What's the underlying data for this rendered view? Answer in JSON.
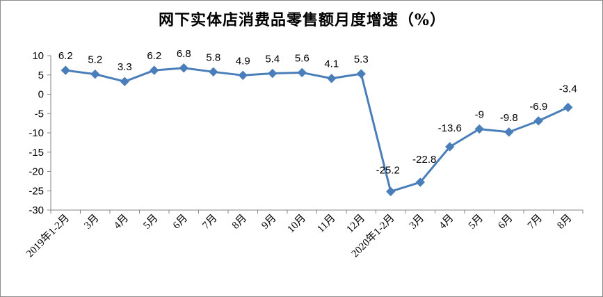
{
  "chart_data": {
    "type": "line",
    "title": "网下实体店消费品零售额月度增速（%）",
    "xlabel": "",
    "ylabel": "",
    "categories": [
      "2019年1-2月",
      "3月",
      "4月",
      "5月",
      "6月",
      "7月",
      "8月",
      "9月",
      "10月",
      "11月",
      "12月",
      "2020年1-2月",
      "3月",
      "4月",
      "5月",
      "6月",
      "7月",
      "8月"
    ],
    "series": [
      {
        "values": [
          6.2,
          5.2,
          3.3,
          6.2,
          6.8,
          5.8,
          4.9,
          5.4,
          5.6,
          4.1,
          5.3,
          -25.2,
          -22.8,
          -13.6,
          -9,
          -9.8,
          -6.9,
          -3.4
        ],
        "labels": [
          "6.2",
          "5.2",
          "3.3",
          "6.2",
          "6.8",
          "5.8",
          "4.9",
          "5.4",
          "5.6",
          "4.1",
          "5.3",
          "-25.2",
          "-22.8",
          "-13.6",
          "-9",
          "-9.8",
          "-6.9",
          "-3.4"
        ],
        "color": "#4a7ebb",
        "marker": "diamond"
      }
    ],
    "yticks": [
      "10",
      "5",
      "0",
      "-5",
      "-10",
      "-15",
      "-20",
      "-25",
      "-30"
    ],
    "ylim": [
      -30,
      10
    ],
    "grid": false,
    "legend": "none"
  }
}
